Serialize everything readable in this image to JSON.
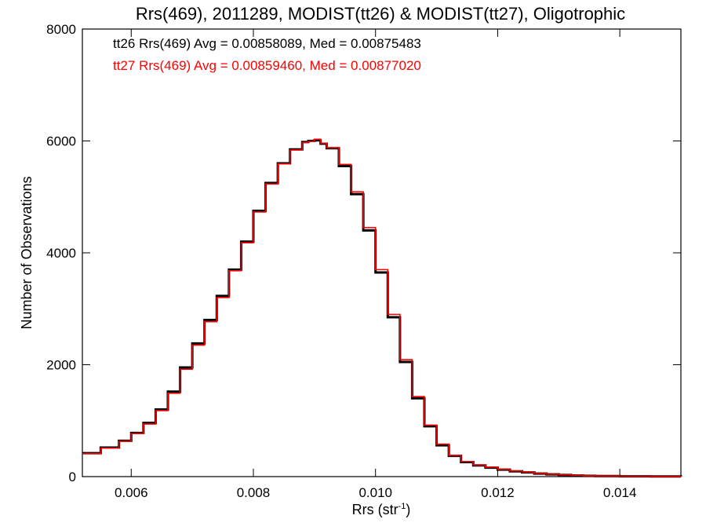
{
  "chart_data": {
    "type": "line",
    "step": true,
    "title": "Rrs(469), 2011289, MODIST(tt26) & MODIST(tt27), Oligotrophic",
    "xlabel_main": "Rrs (str",
    "xlabel_sup": "-1",
    "xlabel_end": ")",
    "ylabel": "Number of Observations",
    "xlim": [
      0.0052,
      0.015
    ],
    "ylim": [
      0,
      8000
    ],
    "x_ticks": [
      0.006,
      0.008,
      0.01,
      0.012,
      0.014
    ],
    "x_tick_labels": [
      "0.006",
      "0.008",
      "0.010",
      "0.012",
      "0.014"
    ],
    "y_ticks": [
      0,
      2000,
      4000,
      6000,
      8000
    ],
    "y_tick_labels": [
      "0",
      "2000",
      "4000",
      "6000",
      "8000"
    ],
    "legend_position": "top-left",
    "legend": [
      {
        "text": "tt26 Rrs(469) Avg = 0.00858089, Med = 0.00875483",
        "color": "#000000"
      },
      {
        "text": "tt27 Rrs(469) Avg = 0.00859460, Med = 0.00877020",
        "color": "#ff0000"
      }
    ],
    "series": [
      {
        "color": "#000000",
        "x": [
          0.0052,
          0.0055,
          0.0058,
          0.006,
          0.0062,
          0.0064,
          0.0066,
          0.0068,
          0.007,
          0.0072,
          0.0074,
          0.0076,
          0.0078,
          0.008,
          0.0082,
          0.0084,
          0.0086,
          0.0088,
          0.0089,
          0.009,
          0.0091,
          0.0092,
          0.0094,
          0.0096,
          0.0098,
          0.01,
          0.0102,
          0.0104,
          0.0106,
          0.0108,
          0.011,
          0.0112,
          0.0114,
          0.0116,
          0.0118,
          0.012,
          0.0122,
          0.0124,
          0.0126,
          0.0128,
          0.013,
          0.0132,
          0.0134,
          0.0136,
          0.014,
          0.0145,
          0.015
        ],
        "y": [
          420,
          520,
          640,
          780,
          960,
          1200,
          1520,
          1950,
          2380,
          2800,
          3230,
          3700,
          4200,
          4750,
          5250,
          5600,
          5850,
          5980,
          6000,
          6010,
          5950,
          5870,
          5550,
          5050,
          4400,
          3650,
          2850,
          2050,
          1400,
          900,
          560,
          370,
          260,
          200,
          160,
          125,
          95,
          75,
          55,
          40,
          30,
          20,
          14,
          10,
          6,
          3,
          2
        ]
      },
      {
        "color": "#ff0000",
        "x": [
          0.0052,
          0.0055,
          0.0058,
          0.006,
          0.0062,
          0.0064,
          0.0066,
          0.0068,
          0.007,
          0.0072,
          0.0074,
          0.0076,
          0.0078,
          0.008,
          0.0082,
          0.0084,
          0.0086,
          0.0088,
          0.0089,
          0.009,
          0.0091,
          0.0092,
          0.0094,
          0.0096,
          0.0098,
          0.01,
          0.0102,
          0.0104,
          0.0106,
          0.0108,
          0.011,
          0.0112,
          0.0114,
          0.0116,
          0.0118,
          0.012,
          0.0122,
          0.0124,
          0.0126,
          0.0128,
          0.013,
          0.0132,
          0.0134,
          0.0136,
          0.014,
          0.0145,
          0.015
        ],
        "y": [
          410,
          510,
          630,
          770,
          940,
          1180,
          1490,
          1920,
          2350,
          2770,
          3200,
          3680,
          4180,
          4730,
          5230,
          5590,
          5840,
          5970,
          5990,
          6030,
          5960,
          5880,
          5580,
          5090,
          4450,
          3700,
          2900,
          2090,
          1430,
          920,
          580,
          380,
          270,
          210,
          170,
          130,
          100,
          80,
          58,
          42,
          32,
          22,
          15,
          11,
          7,
          4,
          2
        ]
      }
    ]
  }
}
